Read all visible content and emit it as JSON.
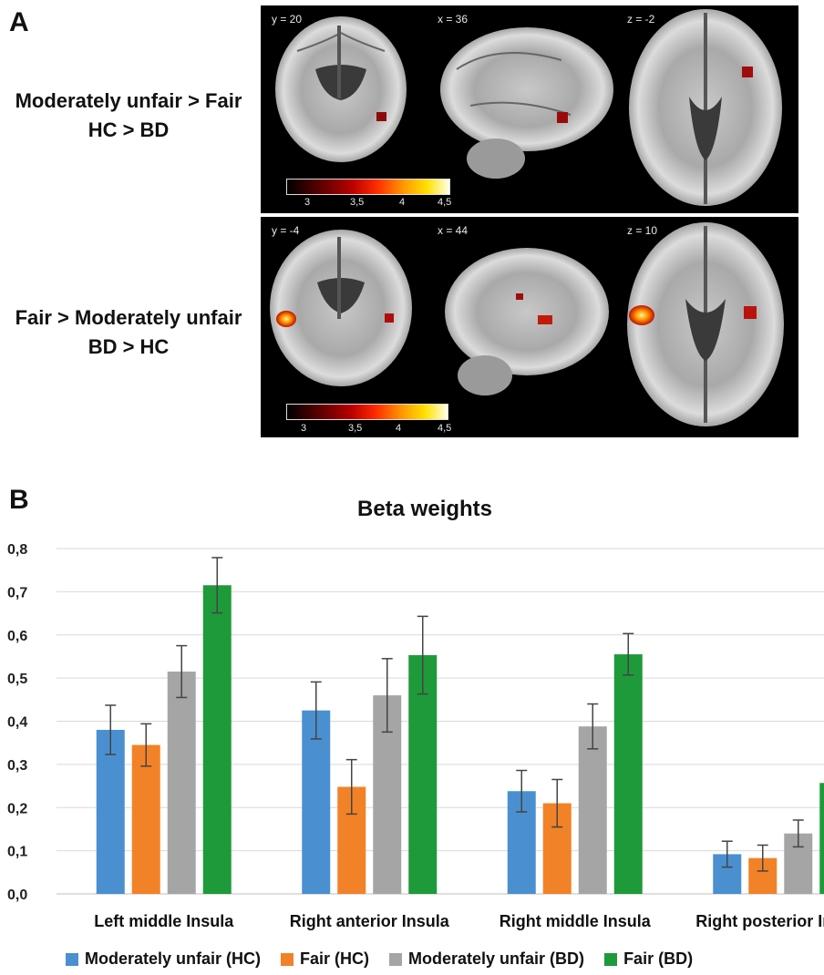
{
  "panel_a": {
    "letter": "A",
    "rows": [
      {
        "line1": "Moderately unfair > Fair",
        "line2": "HC > BD",
        "coords": [
          "y = 20",
          "x = 36",
          "z = -2"
        ],
        "colorbar_ticks": [
          "3",
          "3,5",
          "4",
          "4,5"
        ]
      },
      {
        "line1": "Fair > Moderately unfair",
        "line2": "BD > HC",
        "coords": [
          "y = -4",
          "x = 44",
          "z = 10"
        ],
        "colorbar_ticks": [
          "3",
          "3,5",
          "4",
          "4,5"
        ]
      }
    ]
  },
  "panel_b": {
    "letter": "B"
  },
  "chart_data": {
    "type": "bar",
    "title": "Beta weights",
    "xlabel": "",
    "ylabel": "",
    "ylim": [
      0,
      0.8
    ],
    "yticks": [
      "0,0",
      "0,1",
      "0,2",
      "0,3",
      "0,4",
      "0,5",
      "0,6",
      "0,7",
      "0,8"
    ],
    "grid": true,
    "legend_position": "bottom",
    "categories": [
      "Left middle Insula",
      "Right anterior Insula",
      "Right middle Insula",
      "Right posterior Insula"
    ],
    "series": [
      {
        "name": "Moderately unfair (HC)",
        "color": "#4a90d0",
        "values": [
          0.38,
          0.425,
          0.238,
          0.092
        ],
        "error": [
          0.057,
          0.066,
          0.048,
          0.03
        ]
      },
      {
        "name": "Fair (HC)",
        "color": "#f28228",
        "values": [
          0.345,
          0.248,
          0.21,
          0.083
        ],
        "error": [
          0.049,
          0.063,
          0.055,
          0.03
        ]
      },
      {
        "name": "Moderately unfair (BD)",
        "color": "#a5a5a5",
        "values": [
          0.515,
          0.46,
          0.388,
          0.14
        ],
        "error": [
          0.06,
          0.085,
          0.052,
          0.031
        ]
      },
      {
        "name": "Fair (BD)",
        "color": "#1e9a3a",
        "values": [
          0.715,
          0.553,
          0.555,
          0.257
        ],
        "error": [
          0.064,
          0.09,
          0.048,
          0.034
        ]
      }
    ]
  }
}
